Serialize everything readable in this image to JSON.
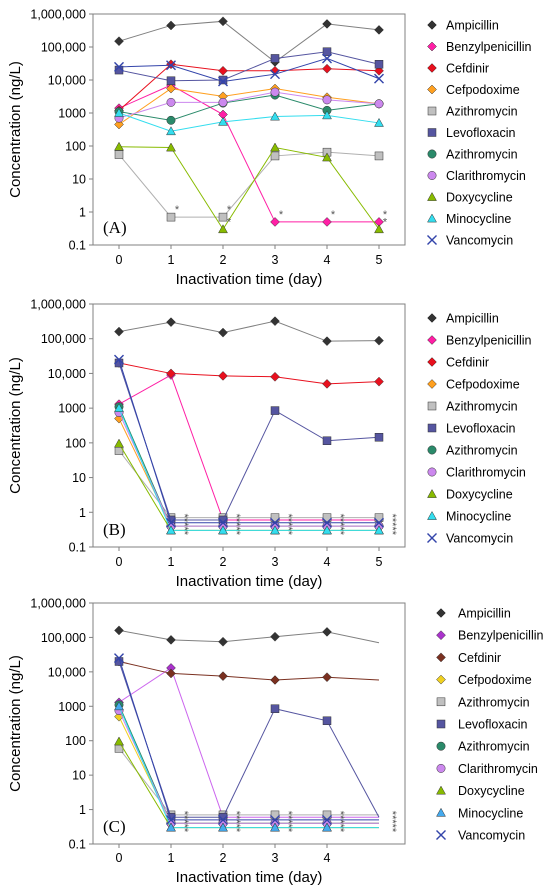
{
  "chart_data": [
    {
      "type": "line",
      "panel_label": "(A)",
      "xlabel": "Inactivation time (day)",
      "ylabel": "Concentration (ng/L)",
      "yscale": "log",
      "ylim": [
        0.1,
        1000000
      ],
      "xlim": [
        -0.5,
        5.5
      ],
      "x_ticks": [
        0,
        1,
        2,
        3,
        4,
        5
      ],
      "y_ticks": [
        "0.1",
        "1",
        "10",
        "100",
        "1000",
        "10,000",
        "100,000",
        "1,000,000"
      ],
      "legend_position": "right",
      "x": [
        0,
        1,
        2,
        3,
        4,
        5
      ],
      "series": [
        {
          "name": "Ampicillin",
          "values": [
            150000,
            450000,
            600000,
            35000,
            500000,
            330000
          ]
        },
        {
          "name": "Benzylpenicillin",
          "values": [
            1400,
            7000,
            900,
            0.5,
            0.5,
            0.5
          ]
        },
        {
          "name": "Cefdinir",
          "values": [
            1200,
            30000,
            19000,
            19000,
            22000,
            19000
          ]
        },
        {
          "name": "Cefpodoxime",
          "values": [
            450,
            5500,
            3200,
            5500,
            3000,
            1900
          ]
        },
        {
          "name": "Azithromycin",
          "values": [
            55,
            0.7,
            0.7,
            50,
            65,
            50
          ]
        },
        {
          "name": "Levofloxacin",
          "values": [
            20000,
            9500,
            10000,
            45000,
            72000,
            30000
          ]
        },
        {
          "name": "Azithromycin",
          "values": [
            1100,
            600,
            2000,
            3500,
            1200,
            1900
          ]
        },
        {
          "name": "Clarithromycin",
          "values": [
            700,
            2100,
            2100,
            4300,
            2500,
            1900
          ]
        },
        {
          "name": "Doxycycline",
          "values": [
            95,
            90,
            0.3,
            90,
            45,
            0.3
          ]
        },
        {
          "name": "Minocycline",
          "values": [
            1000,
            280,
            540,
            780,
            850,
            500
          ]
        },
        {
          "name": "Vancomycin",
          "values": [
            25000,
            28000,
            9000,
            15000,
            45000,
            11000
          ]
        }
      ],
      "annotations": [
        {
          "text": "*",
          "x": 1,
          "y": 0.7
        },
        {
          "text": "*",
          "x": 2,
          "y": 0.7
        },
        {
          "text": "*",
          "x": 2,
          "y": 0.3
        },
        {
          "text": "*",
          "x": 3,
          "y": 0.5
        },
        {
          "text": "*",
          "x": 4,
          "y": 0.5
        },
        {
          "text": "*",
          "x": 5,
          "y": 0.5
        },
        {
          "text": "*",
          "x": 5,
          "y": 0.3
        }
      ]
    },
    {
      "type": "line",
      "panel_label": "(B)",
      "xlabel": "Inactivation time (day)",
      "ylabel": "Concentration (ng/L)",
      "yscale": "log",
      "ylim": [
        0.1,
        1000000
      ],
      "xlim": [
        -0.5,
        5.5
      ],
      "x_ticks": [
        0,
        1,
        2,
        3,
        4,
        5
      ],
      "y_ticks": [
        "0.1",
        "1",
        "10",
        "100",
        "1000",
        "10,000",
        "100,000",
        "1,000,000"
      ],
      "legend_position": "right",
      "x": [
        0,
        1,
        2,
        3,
        4,
        5
      ],
      "series": [
        {
          "name": "Ampicillin",
          "values": [
            160000,
            300000,
            150000,
            320000,
            85000,
            88000
          ]
        },
        {
          "name": "Benzylpenicillin",
          "values": [
            1300,
            9000,
            0.6,
            0.6,
            0.6,
            0.6
          ]
        },
        {
          "name": "Cefdinir",
          "values": [
            20000,
            10000,
            8500,
            8000,
            5000,
            5800
          ]
        },
        {
          "name": "Cefpodoxime",
          "values": [
            500,
            0.4,
            0.4,
            0.4,
            0.4,
            0.4
          ]
        },
        {
          "name": "Azithromycin",
          "values": [
            60,
            0.7,
            0.7,
            0.7,
            0.7,
            0.7
          ]
        },
        {
          "name": "Levofloxacin",
          "values": [
            20000,
            0.6,
            0.6,
            850,
            115,
            145
          ]
        },
        {
          "name": "Azithromycin",
          "values": [
            1100,
            0.4,
            0.4,
            0.4,
            0.4,
            0.4
          ]
        },
        {
          "name": "Clarithromycin",
          "values": [
            750,
            0.4,
            0.4,
            0.4,
            0.4,
            0.4
          ]
        },
        {
          "name": "Doxycycline",
          "values": [
            95,
            0.3,
            0.3,
            0.3,
            0.3,
            0.3
          ]
        },
        {
          "name": "Minocycline",
          "values": [
            1000,
            0.3,
            0.3,
            0.3,
            0.3,
            0.3
          ]
        },
        {
          "name": "Vancomycin",
          "values": [
            25000,
            0.5,
            0.5,
            0.5,
            0.5,
            0.5
          ]
        }
      ],
      "annotations": [
        {
          "text": "*****",
          "x": 1,
          "y": 0.45
        },
        {
          "text": "*****",
          "x": 2,
          "y": 0.45
        },
        {
          "text": "*****",
          "x": 3,
          "y": 0.45
        },
        {
          "text": "*****",
          "x": 4,
          "y": 0.45
        },
        {
          "text": "*****",
          "x": 5,
          "y": 0.45
        }
      ]
    },
    {
      "type": "line",
      "panel_label": "(C)",
      "xlabel": "Inactivation time (day)",
      "ylabel": "Concentration (ng/L)",
      "yscale": "log",
      "ylim": [
        0.1,
        1000000
      ],
      "xlim": [
        -0.5,
        5.5
      ],
      "x_ticks": [
        0,
        1,
        2,
        3,
        4
      ],
      "y_ticks": [
        "0.1",
        "1",
        "10",
        "100",
        "1000",
        "10,000",
        "100,000",
        "1,000,000"
      ],
      "legend_position": "right",
      "x": [
        0,
        1,
        2,
        3,
        4,
        5
      ],
      "series": [
        {
          "name": "Ampicillin",
          "values": [
            160000,
            85000,
            75000,
            105000,
            145000,
            70000
          ]
        },
        {
          "name": "Benzylpenicillin",
          "values": [
            1300,
            13000,
            0.6,
            0.6,
            0.6,
            0.6
          ]
        },
        {
          "name": "Cefdinir",
          "values": [
            20000,
            9000,
            7500,
            5800,
            7000,
            5800
          ]
        },
        {
          "name": "Cefpodoxime",
          "values": [
            500,
            0.4,
            0.4,
            0.4,
            0.4,
            0.4
          ]
        },
        {
          "name": "Azithromycin",
          "values": [
            60,
            0.7,
            0.7,
            0.7,
            0.7,
            0.7
          ]
        },
        {
          "name": "Levofloxacin",
          "values": [
            20000,
            0.6,
            0.6,
            850,
            380,
            0.6
          ]
        },
        {
          "name": "Azithromycin",
          "values": [
            1100,
            0.4,
            0.4,
            0.4,
            0.4,
            0.4
          ]
        },
        {
          "name": "Clarithromycin",
          "values": [
            750,
            0.4,
            0.4,
            0.4,
            0.4,
            0.4
          ]
        },
        {
          "name": "Doxycycline",
          "values": [
            95,
            0.3,
            0.3,
            0.3,
            0.3,
            0.3
          ]
        },
        {
          "name": "Minocycline",
          "values": [
            1000,
            0.3,
            0.3,
            0.3,
            0.3,
            0.3
          ]
        },
        {
          "name": "Vancomycin",
          "values": [
            25000,
            0.5,
            0.5,
            0.5,
            0.5,
            0.5
          ]
        }
      ],
      "annotations": [
        {
          "text": "*****",
          "x": 1,
          "y": 0.45
        },
        {
          "text": "*****",
          "x": 2,
          "y": 0.45
        },
        {
          "text": "*****",
          "x": 3,
          "y": 0.45
        },
        {
          "text": "*****",
          "x": 4,
          "y": 0.45
        },
        {
          "text": "*****",
          "x": 5,
          "y": 0.45
        }
      ]
    }
  ],
  "series_styles": [
    {
      "marker": "diamond",
      "fill": "#333333",
      "line": "#808080"
    },
    {
      "marker": "diamond",
      "fill": "#ff1fa5",
      "line": "#ff1fa5"
    },
    {
      "marker": "diamond",
      "fill": "#e8101e",
      "line": "#e8101e"
    },
    {
      "marker": "diamond",
      "fill": "#ffa020",
      "line": "#ffa020"
    },
    {
      "marker": "square",
      "fill": "#c0c0c0",
      "line": "#b0b0b0"
    },
    {
      "marker": "square",
      "fill": "#5555a0",
      "line": "#5555a0"
    },
    {
      "marker": "circle",
      "fill": "#2a8a6a",
      "line": "#2a8a6a"
    },
    {
      "marker": "circle",
      "fill": "#cc88ee",
      "line": "#cc88ee"
    },
    {
      "marker": "triangle",
      "fill": "#88bb00",
      "line": "#88bb00"
    },
    {
      "marker": "triangle",
      "fill": "#33ddee",
      "line": "#33ddee"
    },
    {
      "marker": "x",
      "fill": "#3344aa",
      "line": "#3344aa"
    }
  ],
  "panel_c_styles": [
    {
      "marker": "diamond",
      "fill": "#333333",
      "line": "#808080"
    },
    {
      "marker": "diamond",
      "fill": "#aa33cc",
      "line": "#cc66ee"
    },
    {
      "marker": "diamond",
      "fill": "#7a3020",
      "line": "#7a3020"
    },
    {
      "marker": "diamond",
      "fill": "#f0d020",
      "line": "#f0d020"
    },
    {
      "marker": "square",
      "fill": "#c0c0c0",
      "line": "#b0b0b0"
    },
    {
      "marker": "square",
      "fill": "#5555a0",
      "line": "#5555a0"
    },
    {
      "marker": "circle",
      "fill": "#2a8a6a",
      "line": "#2a8a6a"
    },
    {
      "marker": "circle",
      "fill": "#cc88ee",
      "line": "#cc88ee"
    },
    {
      "marker": "triangle",
      "fill": "#88bb00",
      "line": "#88bb00"
    },
    {
      "marker": "triangle",
      "fill": "#44aaee",
      "line": "#33ddee"
    },
    {
      "marker": "x",
      "fill": "#3344aa",
      "line": "#3344aa"
    }
  ]
}
